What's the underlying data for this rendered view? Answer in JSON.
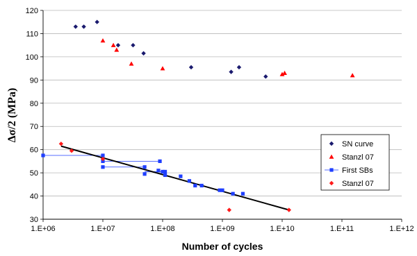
{
  "chart_data": {
    "type": "scatter",
    "xlabel": "Number of cycles",
    "ylabel": "Δσ/2 (MPa)",
    "xscale": "log",
    "xlim": [
      1000000,
      1000000000000
    ],
    "ylim": [
      30,
      120
    ],
    "x_ticks": [
      "1.E+06",
      "1.E+07",
      "1.E+08",
      "1.E+09",
      "1.E+10",
      "1.E+11",
      "1.E+12"
    ],
    "y_ticks": [
      30,
      40,
      50,
      60,
      70,
      80,
      90,
      100,
      110,
      120
    ],
    "grid": "horizontal",
    "legend_position": "right",
    "series": [
      {
        "name": "SN curve",
        "marker": "diamond",
        "color": "#1a1a6e",
        "points": [
          [
            3500000,
            113
          ],
          [
            4800000,
            113
          ],
          [
            8000000,
            115
          ],
          [
            18000000,
            105
          ],
          [
            32000000,
            105
          ],
          [
            48000000,
            101.5
          ],
          [
            300000000,
            95.5
          ],
          [
            1400000000,
            93.5
          ],
          [
            1900000000,
            95.5
          ],
          [
            5300000000,
            91.5
          ]
        ]
      },
      {
        "name": "Stanzl 07",
        "marker": "triangle",
        "color": "#ff0000",
        "points": [
          [
            10000000,
            107
          ],
          [
            15000000,
            105
          ],
          [
            17000000,
            103
          ],
          [
            30000000,
            97
          ],
          [
            100000000,
            95
          ],
          [
            10000000000,
            92.5
          ],
          [
            11000000000,
            93
          ],
          [
            150000000000,
            92
          ]
        ]
      },
      {
        "name": "First SBs",
        "marker": "square",
        "color": "#1f3fff",
        "points": [
          [
            1000000,
            57.5
          ],
          [
            10000000,
            57.5
          ],
          [
            10000000,
            55
          ],
          [
            10000000,
            52.5
          ],
          [
            50000000,
            52.5
          ],
          [
            50000000,
            49.5
          ],
          [
            90000000,
            55
          ],
          [
            85000000,
            51
          ],
          [
            100000000,
            50.5
          ],
          [
            110000000,
            50.5
          ],
          [
            110000000,
            49
          ],
          [
            200000000,
            48.5
          ],
          [
            280000000,
            46.5
          ],
          [
            350000000,
            44.5
          ],
          [
            450000000,
            44.5
          ],
          [
            900000000,
            42.5
          ],
          [
            1000000000,
            42.5
          ],
          [
            1500000000,
            41
          ],
          [
            2200000000,
            41
          ]
        ],
        "error_bars": [
          {
            "x_from": 1000000,
            "x_to": 10000000,
            "y": 57.5
          },
          {
            "x_from": 10000000,
            "x_to": 90000000,
            "y": 55
          },
          {
            "x_from": 10000000,
            "x_to": 50000000,
            "y": 52.5
          },
          {
            "x_from": 50000000,
            "x_to": 110000000,
            "y": 50.5
          }
        ]
      },
      {
        "name": "Stanzl 07",
        "marker": "diamond",
        "color": "#ff1a1a",
        "points": [
          [
            2000000,
            62.5
          ],
          [
            3000000,
            59.5
          ],
          [
            10000000,
            56
          ],
          [
            1300000000,
            34
          ],
          [
            13000000000,
            34
          ]
        ]
      }
    ],
    "trendline": {
      "color": "#000000",
      "from": [
        2000000,
        61.5
      ],
      "to": [
        13000000000,
        34
      ]
    }
  }
}
